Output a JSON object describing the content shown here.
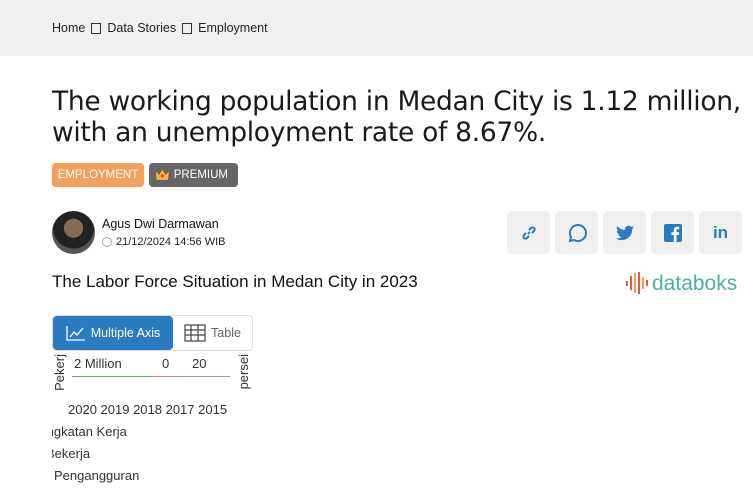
{
  "breadcrumb": [
    "Home",
    "Data Stories",
    "Employment"
  ],
  "title": "The working population in Medan City is 1.12 million, with an unemployment rate of 8.67%.",
  "badges": {
    "category": "EMPLOYMENT",
    "premium": "PREMIUM"
  },
  "author": {
    "name": "Agus Dwi Darmawan",
    "date": "21/12/2024 14:56 WIB"
  },
  "share": [
    "link-icon",
    "whatsapp-icon",
    "twitter-icon",
    "facebook-icon",
    "linkedin-icon"
  ],
  "chart_title": "The Labor Force Situation in Medan City in 2023",
  "logo": "databoks",
  "tabs": {
    "multiple_axis": "Multiple Axis",
    "table": "Table"
  },
  "chart_broken": {
    "years": "2020 2019 2018 2017 2015",
    "axis1": "2 Million",
    "zero": "0",
    "twenty": "20",
    "ylabel_left": "Pekerj",
    "ylabel_right": "persei",
    "legend": [
      "Angkatan Kerja",
      "Bekerja",
      "Pengangguran"
    ]
  },
  "colors": {
    "accent": "#2a7bbf",
    "category": "#f2a05c",
    "logo": "#4ab0a6"
  }
}
